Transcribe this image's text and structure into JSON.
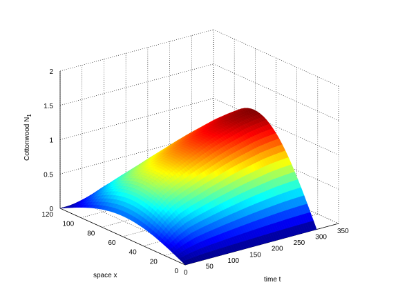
{
  "chart_data": {
    "type": "surface",
    "title": "",
    "xlabel": "time t",
    "ylabel": "space x",
    "zlabel": "Cottonwood N",
    "zlabel_subscript": "1",
    "xlim": [
      0,
      350
    ],
    "ylim": [
      0,
      120
    ],
    "zlim": [
      0,
      2
    ],
    "xticks": [
      "0",
      "50",
      "100",
      "150",
      "200",
      "250",
      "300",
      "350"
    ],
    "yticks": [
      "0",
      "20",
      "40",
      "60",
      "80",
      "100",
      "120"
    ],
    "zticks": [
      "0",
      "0.5",
      "1",
      "1.5",
      "2"
    ],
    "grid": true,
    "colormap": "jet",
    "surface": {
      "t": [
        0,
        25,
        50,
        75,
        100,
        125,
        150,
        175,
        200,
        225,
        250,
        275,
        300
      ],
      "x": [
        0,
        10,
        20,
        30,
        40,
        50,
        60,
        70,
        80,
        90,
        100,
        110,
        120
      ],
      "peak_N1_at_x60": [
        0.3,
        0.55,
        0.72,
        0.82,
        0.9,
        0.98,
        1.05,
        1.12,
        1.18,
        1.23,
        1.28,
        1.31,
        1.33
      ],
      "profile_in_x": "sin(pi*x/120), zero at x=0 and x=120"
    }
  }
}
